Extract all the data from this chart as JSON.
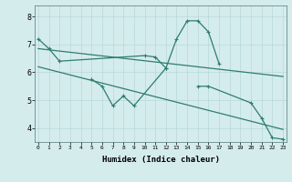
{
  "xlabel": "Humidex (Indice chaleur)",
  "background_color": "#d5ecec",
  "grid_color": "#b8d8d8",
  "line_color": "#2e7d6e",
  "x_values": [
    0,
    1,
    2,
    3,
    4,
    5,
    6,
    7,
    8,
    9,
    10,
    11,
    12,
    13,
    14,
    15,
    16,
    17,
    18,
    19,
    20,
    21,
    22,
    23
  ],
  "upper_line": [
    7.2,
    6.85,
    6.4,
    null,
    null,
    null,
    null,
    null,
    null,
    null,
    6.6,
    6.55,
    6.15,
    7.2,
    7.85,
    7.85,
    7.45,
    6.3,
    null,
    null,
    null,
    null,
    null,
    null
  ],
  "lower_wavy": [
    null,
    null,
    null,
    null,
    null,
    5.75,
    5.5,
    4.8,
    5.15,
    4.8,
    null,
    null,
    6.15,
    null,
    null,
    null,
    null,
    null,
    null,
    null,
    null,
    null,
    null,
    null
  ],
  "right_line": [
    null,
    null,
    null,
    null,
    null,
    null,
    null,
    null,
    null,
    null,
    null,
    null,
    null,
    null,
    null,
    5.5,
    5.5,
    null,
    null,
    null,
    4.9,
    4.35,
    3.65,
    3.6
  ],
  "trend1_x": [
    0,
    23
  ],
  "trend1_y": [
    6.85,
    5.85
  ],
  "trend2_x": [
    0,
    23
  ],
  "trend2_y": [
    6.2,
    3.95
  ],
  "ylim": [
    3.5,
    8.4
  ],
  "xlim": [
    -0.3,
    23.3
  ],
  "yticks": [
    4,
    5,
    6,
    7,
    8
  ]
}
